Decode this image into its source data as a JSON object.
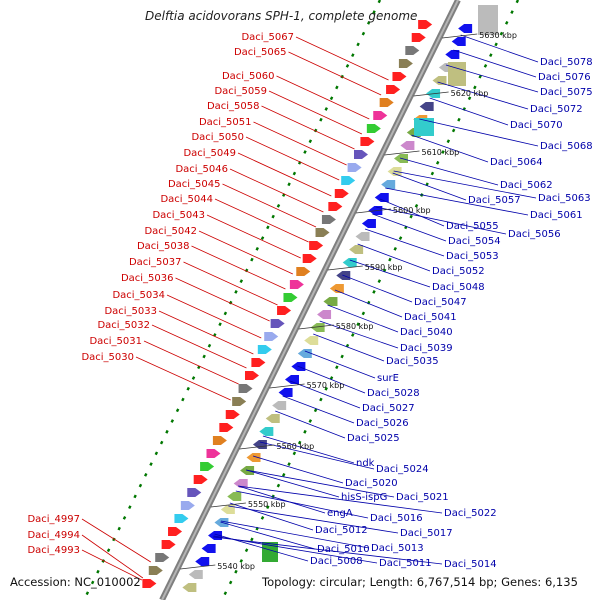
{
  "title": "Delftia acidovorans SPH-1, complete genome",
  "footer": {
    "accession": "Accession: NC_010002",
    "summary": "Topology: circular; Length: 6,767,514 bp; Genes: 6,135"
  },
  "colors": {
    "backbone": "#7f7f7f",
    "forward_label": "#cc0000",
    "reverse_label": "#0000aa",
    "forward_gene": "#ff0000",
    "reverse_gene": "#0000ee",
    "cds_dots": "#007700"
  },
  "ticks": [
    "5540 kbp",
    "5550 kbp",
    "5560 kbp",
    "5570 kbp",
    "5580 kbp",
    "5590 kbp",
    "5600 kbp",
    "5610 kbp",
    "5620 kbp",
    "5630 kbp"
  ],
  "forward_labels": [
    "Daci_5067",
    "Daci_5065",
    "Daci_5060",
    "Daci_5059",
    "Daci_5058",
    "Daci_5051",
    "Daci_5050",
    "Daci_5049",
    "Daci_5046",
    "Daci_5045",
    "Daci_5044",
    "Daci_5043",
    "Daci_5042",
    "Daci_5038",
    "Daci_5037",
    "Daci_5036",
    "Daci_5034",
    "Daci_5033",
    "Daci_5032",
    "Daci_5031",
    "Daci_5030",
    "Daci_4997",
    "Daci_4994",
    "Daci_4993"
  ],
  "reverse_labels": [
    "Daci_5078",
    "Daci_5076",
    "Daci_5075",
    "Daci_5072",
    "Daci_5070",
    "Daci_5068",
    "Daci_5064",
    "Daci_5062",
    "Daci_5063",
    "Daci_5057",
    "Daci_5061",
    "Daci_5055",
    "Daci_5056",
    "Daci_5054",
    "Daci_5053",
    "Daci_5052",
    "Daci_5048",
    "Daci_5047",
    "Daci_5041",
    "Daci_5040",
    "Daci_5039",
    "Daci_5035",
    "surE",
    "Daci_5028",
    "Daci_5027",
    "Daci_5026",
    "Daci_5025",
    "ndk",
    "Daci_5024",
    "Daci_5020",
    "hisS-ispG",
    "Daci_5021",
    "Daci_5022",
    "engA",
    "Daci_5016",
    "Daci_5017",
    "Daci_5012",
    "Daci_5013",
    "Daci_5010",
    "Daci_5011",
    "Daci_5014",
    "Daci_5008"
  ]
}
